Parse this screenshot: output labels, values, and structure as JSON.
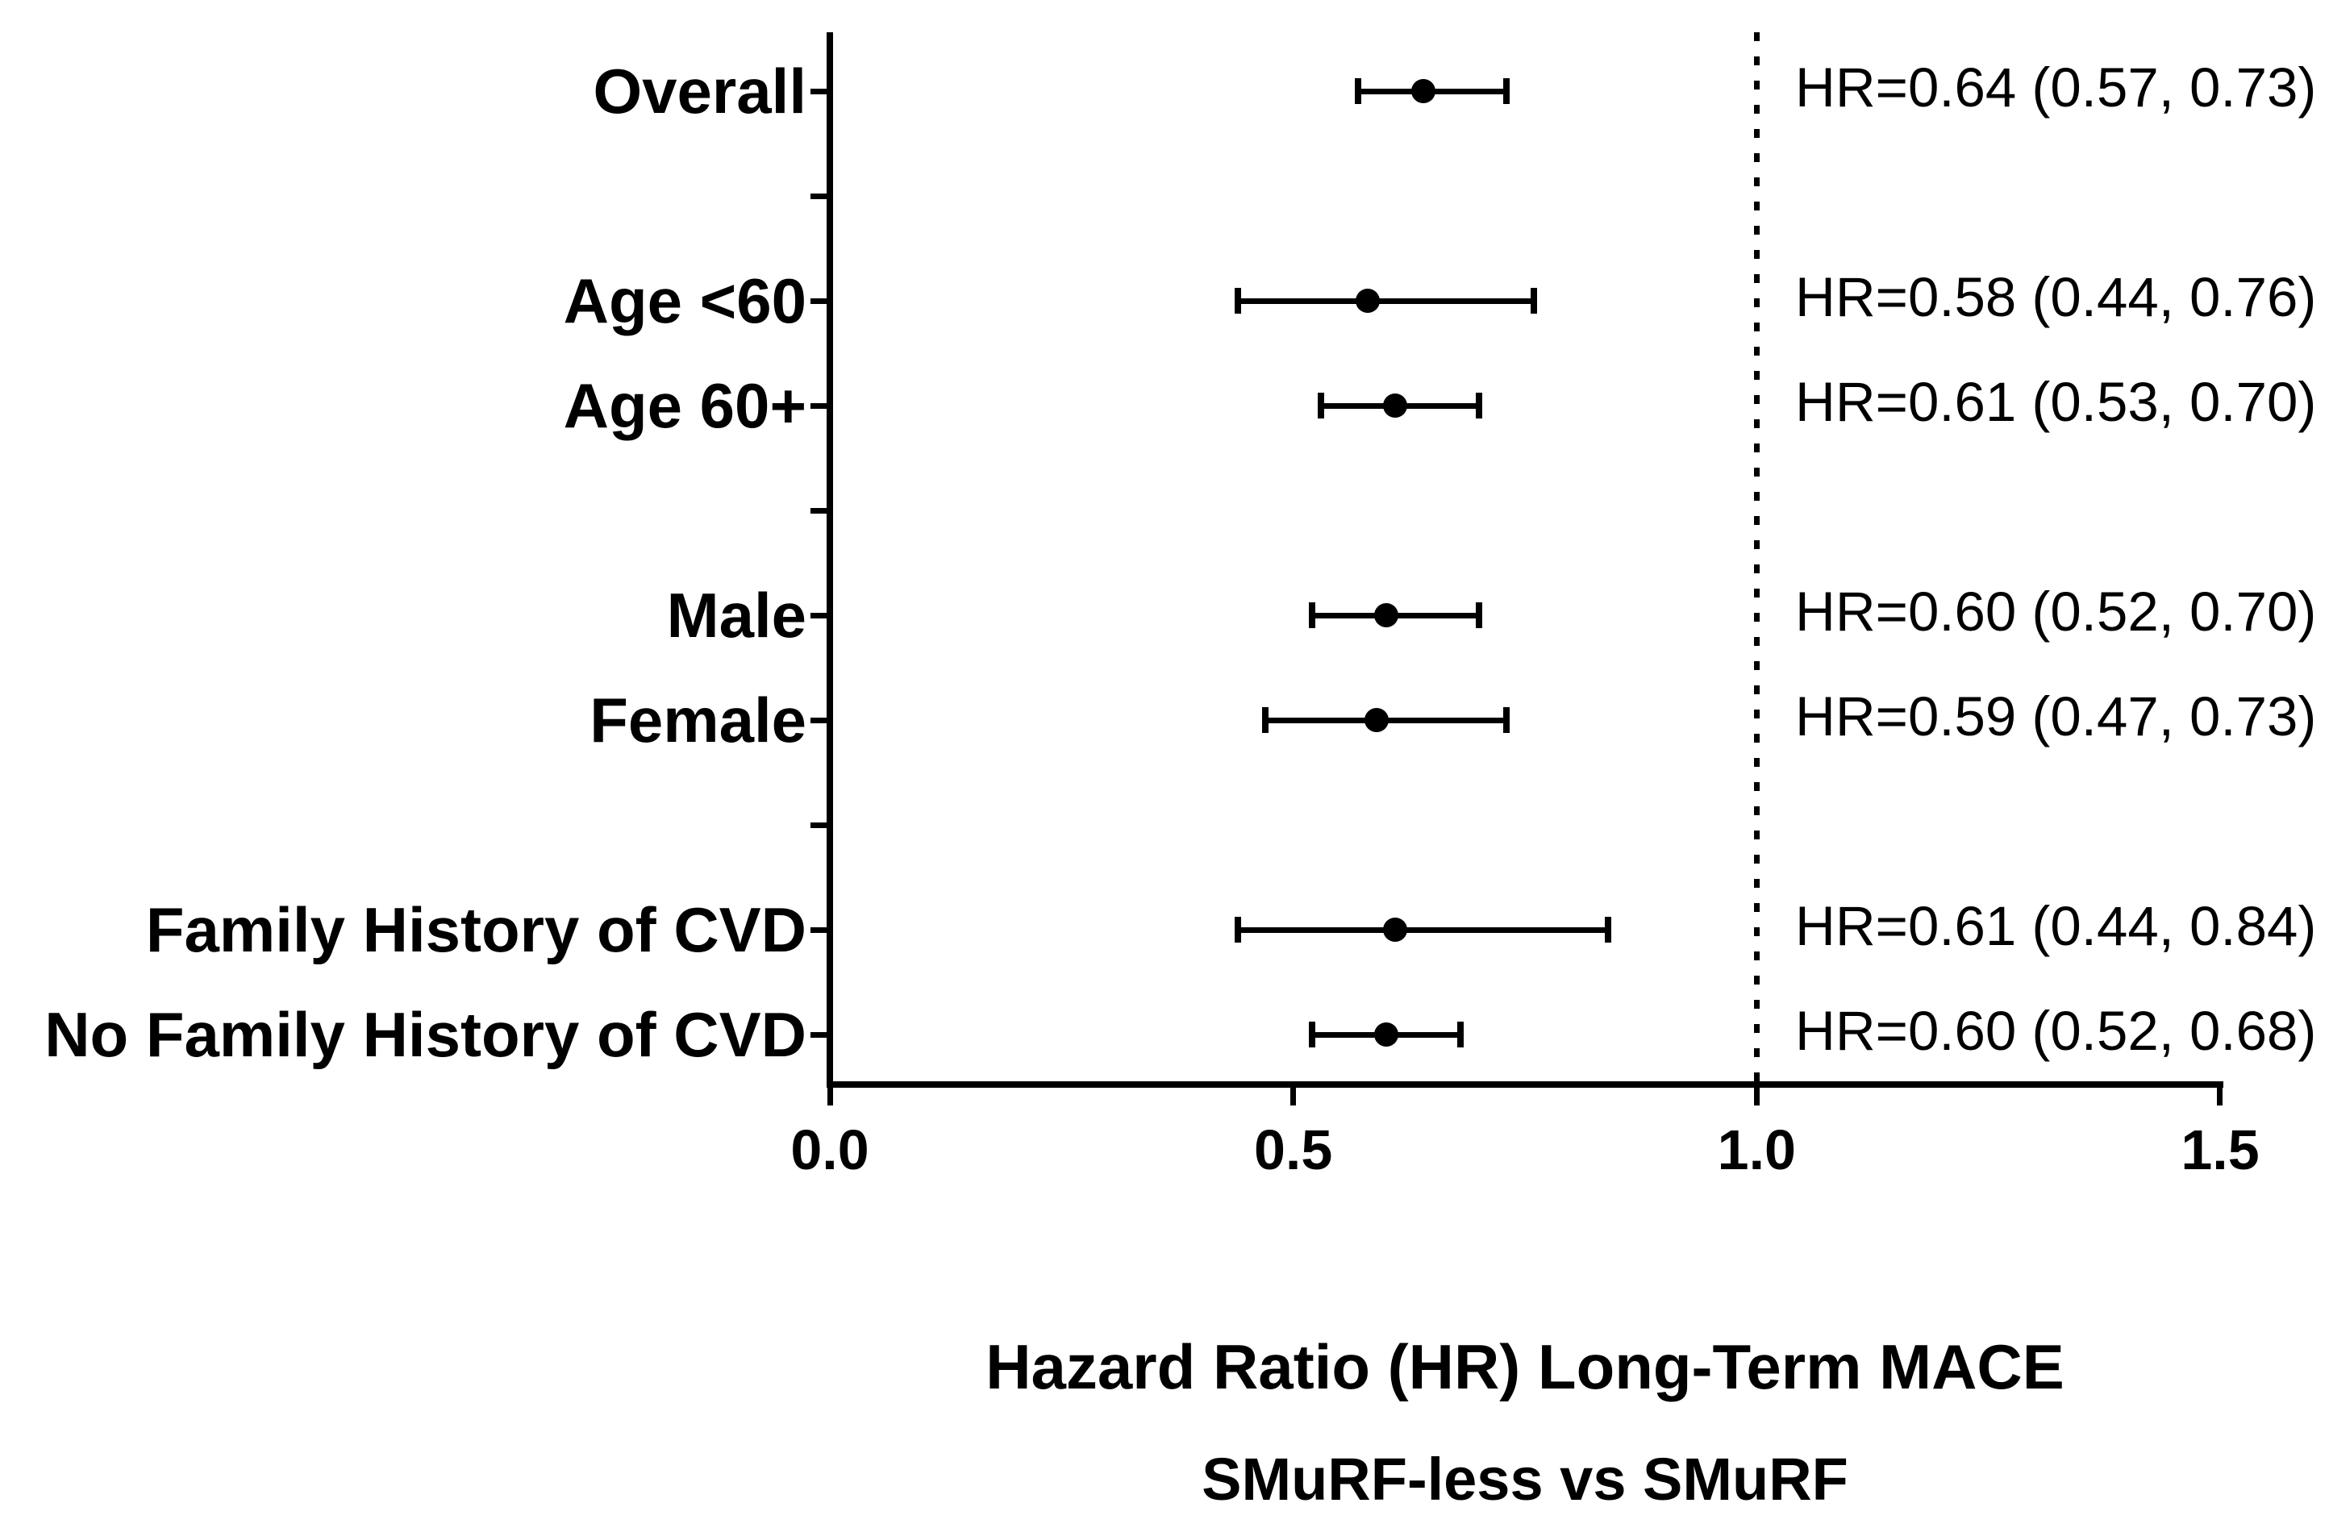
{
  "chart_data": {
    "type": "scatter",
    "subtype": "forest-plot",
    "title": "Hazard Ratio (HR) Long-Term MACE",
    "subtitle": "SMuRF-less vs SMuRF",
    "xlim": [
      0,
      1.5
    ],
    "x_ticks": [
      0.0,
      0.5,
      1.0,
      1.5
    ],
    "x_tick_labels": [
      "0.0",
      "0.5",
      "1.0",
      "1.5"
    ],
    "reference_line_x": 1.0,
    "grid": "off",
    "legend": "none",
    "colors": {
      "foreground": "#000000",
      "background": "#ffffff"
    },
    "rows": [
      {
        "label": "Overall",
        "hr": 0.64,
        "ci_low": 0.57,
        "ci_high": 0.73,
        "annotation": "HR=0.64 (0.57, 0.73)",
        "slot": 0
      },
      {
        "label": "Age <60",
        "hr": 0.58,
        "ci_low": 0.44,
        "ci_high": 0.76,
        "annotation": "HR=0.58 (0.44, 0.76)",
        "slot": 2
      },
      {
        "label": "Age 60+",
        "hr": 0.61,
        "ci_low": 0.53,
        "ci_high": 0.7,
        "annotation": "HR=0.61 (0.53, 0.70)",
        "slot": 3
      },
      {
        "label": "Male",
        "hr": 0.6,
        "ci_low": 0.52,
        "ci_high": 0.7,
        "annotation": "HR=0.60 (0.52, 0.70)",
        "slot": 5
      },
      {
        "label": "Female",
        "hr": 0.59,
        "ci_low": 0.47,
        "ci_high": 0.73,
        "annotation": "HR=0.59 (0.47, 0.73)",
        "slot": 6
      },
      {
        "label": "Family History of CVD",
        "hr": 0.61,
        "ci_low": 0.44,
        "ci_high": 0.84,
        "annotation": "HR=0.61 (0.44, 0.84)",
        "slot": 8
      },
      {
        "label": "No Family History of CVD",
        "hr": 0.6,
        "ci_low": 0.52,
        "ci_high": 0.68,
        "annotation": "HR=0.60 (0.52, 0.68)",
        "slot": 9
      }
    ],
    "blank_slots": [
      1,
      4,
      7
    ]
  }
}
